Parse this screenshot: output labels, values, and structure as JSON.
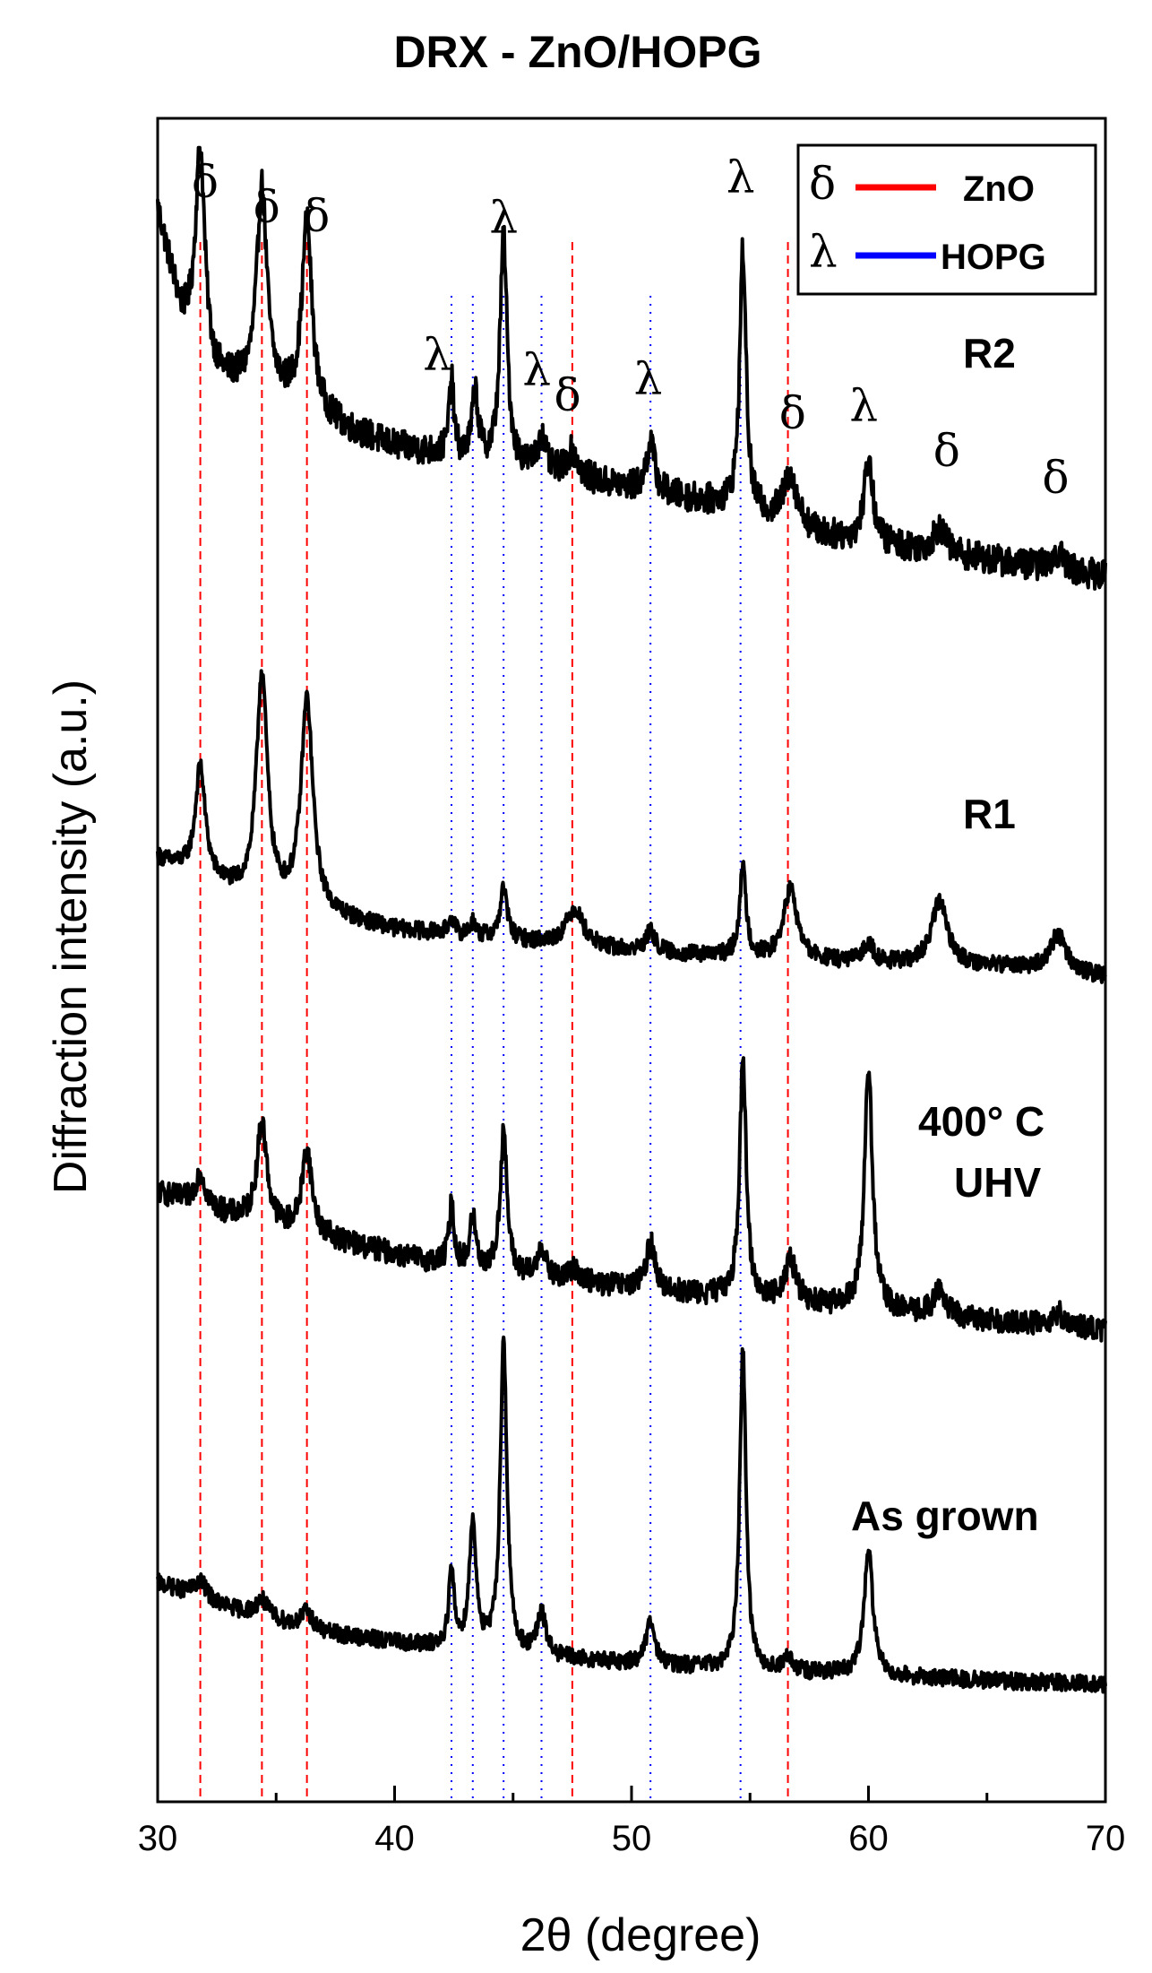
{
  "chart_data": {
    "type": "line",
    "title": "DRX - ZnO/HOPG",
    "xlabel": "2θ (degree)",
    "ylabel": "Diffraction intensity (a.u.)",
    "xlim": [
      30,
      70
    ],
    "xticks": [
      30,
      40,
      50,
      60,
      70
    ],
    "xticks_minor": [
      35,
      45,
      55,
      65
    ],
    "y_ticks_shown": false,
    "legend": {
      "position": "top-right",
      "entries": [
        {
          "symbol": "δ",
          "label": "ZnO",
          "color": "#ff0000"
        },
        {
          "symbol": "λ",
          "label": "HOPG",
          "color": "#0000ff"
        }
      ]
    },
    "reference_lines": {
      "ZnO": {
        "style": "dashed",
        "color": "#ff0000",
        "positions": [
          31.8,
          34.4,
          36.3,
          47.5,
          56.6
        ]
      },
      "HOPG": {
        "style": "dotted",
        "color": "#0000ff",
        "positions": [
          42.4,
          43.3,
          44.6,
          46.2,
          50.8,
          54.6
        ]
      }
    },
    "peak_annotations": [
      {
        "symbol": "δ",
        "x": 32.0
      },
      {
        "symbol": "δ",
        "x": 34.6
      },
      {
        "symbol": "δ",
        "x": 36.7
      },
      {
        "symbol": "λ",
        "x": 41.8
      },
      {
        "symbol": "λ",
        "x": 44.6
      },
      {
        "symbol": "λ",
        "x": 46.0
      },
      {
        "symbol": "δ",
        "x": 47.3
      },
      {
        "symbol": "λ",
        "x": 50.7
      },
      {
        "symbol": "λ",
        "x": 54.6
      },
      {
        "symbol": "δ",
        "x": 56.8
      },
      {
        "symbol": "λ",
        "x": 59.8
      },
      {
        "symbol": "δ",
        "x": 63.3
      },
      {
        "symbol": "δ",
        "x": 67.9
      }
    ],
    "series": [
      {
        "name": "R2",
        "label": "R2",
        "baseline": [
          [
            30,
            0.945
          ],
          [
            31,
            0.88
          ],
          [
            32,
            0.845
          ],
          [
            34,
            0.84
          ],
          [
            36,
            0.83
          ],
          [
            38,
            0.815
          ],
          [
            40,
            0.805
          ],
          [
            44,
            0.795
          ],
          [
            50,
            0.78
          ],
          [
            54,
            0.77
          ],
          [
            58,
            0.752
          ],
          [
            64,
            0.74
          ],
          [
            70,
            0.728
          ]
        ],
        "peaks": [
          [
            31.8,
            0.13,
            0.25
          ],
          [
            34.4,
            0.12,
            0.25
          ],
          [
            36.3,
            0.11,
            0.25
          ],
          [
            42.4,
            0.045,
            0.12
          ],
          [
            43.4,
            0.04,
            0.15
          ],
          [
            44.6,
            0.135,
            0.18
          ],
          [
            46.2,
            0.02,
            0.2
          ],
          [
            47.5,
            0.015,
            0.3
          ],
          [
            50.8,
            0.03,
            0.2
          ],
          [
            54.7,
            0.155,
            0.16
          ],
          [
            56.7,
            0.03,
            0.35
          ],
          [
            60.0,
            0.05,
            0.22
          ],
          [
            63.0,
            0.015,
            0.3
          ],
          [
            68.0,
            0.01,
            0.3
          ]
        ],
        "noise": 0.009
      },
      {
        "name": "R1",
        "label": "R1",
        "baseline": [
          [
            30,
            0.56
          ],
          [
            34,
            0.535
          ],
          [
            40,
            0.518
          ],
          [
            46,
            0.51
          ],
          [
            50,
            0.505
          ],
          [
            56,
            0.5
          ],
          [
            62,
            0.497
          ],
          [
            66,
            0.496
          ],
          [
            70,
            0.49
          ]
        ],
        "peaks": [
          [
            31.8,
            0.065,
            0.25
          ],
          [
            34.4,
            0.135,
            0.28
          ],
          [
            36.3,
            0.125,
            0.3
          ],
          [
            42.4,
            0.01,
            0.15
          ],
          [
            43.3,
            0.008,
            0.15
          ],
          [
            44.6,
            0.03,
            0.18
          ],
          [
            47.6,
            0.022,
            0.45
          ],
          [
            50.8,
            0.012,
            0.25
          ],
          [
            54.7,
            0.052,
            0.17
          ],
          [
            56.7,
            0.042,
            0.35
          ],
          [
            60.0,
            0.012,
            0.25
          ],
          [
            63.0,
            0.038,
            0.4
          ],
          [
            68.0,
            0.022,
            0.4
          ]
        ],
        "noise": 0.005
      },
      {
        "name": "400° C UHV",
        "label": "400° C UHV",
        "baseline": [
          [
            30,
            0.362
          ],
          [
            33,
            0.348
          ],
          [
            37,
            0.335
          ],
          [
            41,
            0.322
          ],
          [
            46,
            0.31
          ],
          [
            50,
            0.305
          ],
          [
            55,
            0.298
          ],
          [
            60,
            0.292
          ],
          [
            65,
            0.286
          ],
          [
            70,
            0.28
          ]
        ],
        "peaks": [
          [
            31.8,
            0.02,
            0.25
          ],
          [
            34.4,
            0.06,
            0.25
          ],
          [
            36.3,
            0.05,
            0.25
          ],
          [
            42.4,
            0.035,
            0.13
          ],
          [
            43.3,
            0.03,
            0.15
          ],
          [
            44.6,
            0.085,
            0.17
          ],
          [
            46.2,
            0.02,
            0.2
          ],
          [
            47.6,
            0.008,
            0.3
          ],
          [
            50.8,
            0.028,
            0.22
          ],
          [
            54.7,
            0.14,
            0.17
          ],
          [
            56.7,
            0.025,
            0.3
          ],
          [
            60.0,
            0.145,
            0.2
          ],
          [
            63.0,
            0.015,
            0.3
          ],
          [
            68.0,
            0.008,
            0.3
          ]
        ],
        "noise": 0.007
      },
      {
        "name": "As grown",
        "label": "As grown",
        "baseline": [
          [
            30,
            0.13
          ],
          [
            33,
            0.115
          ],
          [
            37,
            0.1
          ],
          [
            41,
            0.093
          ],
          [
            44,
            0.088
          ],
          [
            50,
            0.082
          ],
          [
            55,
            0.078
          ],
          [
            60,
            0.075
          ],
          [
            65,
            0.072
          ],
          [
            70,
            0.07
          ]
        ],
        "peaks": [
          [
            31.8,
            0.01,
            0.3
          ],
          [
            34.4,
            0.01,
            0.3
          ],
          [
            36.3,
            0.01,
            0.3
          ],
          [
            42.4,
            0.045,
            0.14
          ],
          [
            43.3,
            0.075,
            0.18
          ],
          [
            44.6,
            0.185,
            0.17
          ],
          [
            46.2,
            0.025,
            0.22
          ],
          [
            50.8,
            0.025,
            0.22
          ],
          [
            54.7,
            0.19,
            0.16
          ],
          [
            56.6,
            0.008,
            0.2
          ],
          [
            60.0,
            0.075,
            0.22
          ]
        ],
        "noise": 0.005
      }
    ]
  }
}
